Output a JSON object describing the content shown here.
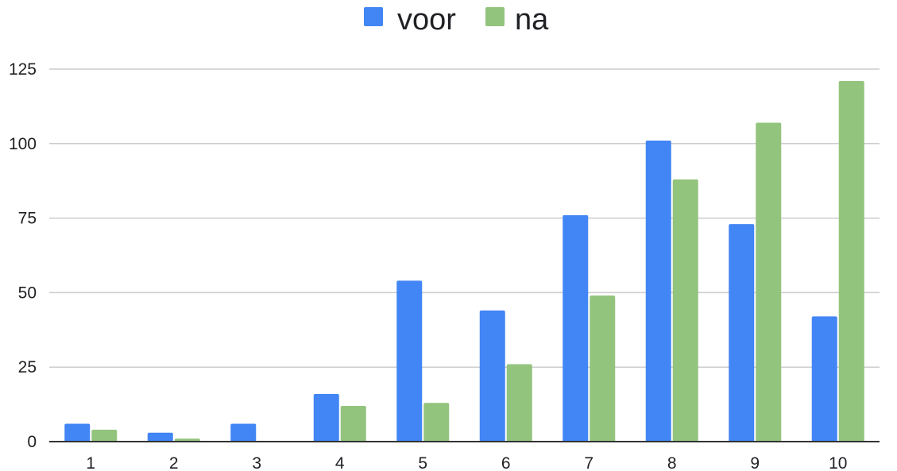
{
  "chart_data": {
    "type": "bar",
    "categories": [
      "1",
      "2",
      "3",
      "4",
      "5",
      "6",
      "7",
      "8",
      "9",
      "10"
    ],
    "series": [
      {
        "name": "voor",
        "color": "#4285f4",
        "values": [
          6,
          3,
          6,
          16,
          54,
          44,
          76,
          101,
          73,
          42
        ]
      },
      {
        "name": "na",
        "color": "#93c47d",
        "values": [
          4,
          1,
          0,
          12,
          13,
          26,
          49,
          88,
          107,
          121
        ]
      }
    ],
    "y_ticks": [
      "0",
      "25",
      "50",
      "75",
      "100",
      "125"
    ],
    "ylim": [
      0,
      125
    ],
    "grid": true,
    "legend_position": "top-center",
    "title": "",
    "xlabel": "",
    "ylabel": ""
  }
}
